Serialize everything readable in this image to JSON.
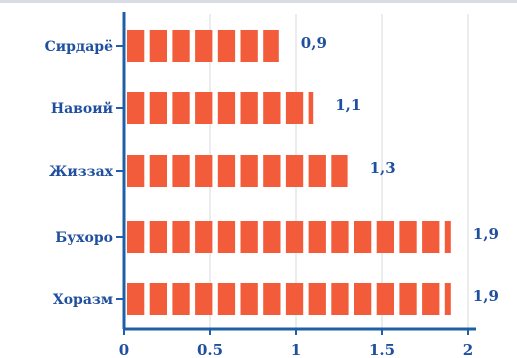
{
  "chart_data": {
    "type": "bar",
    "orientation": "horizontal",
    "categories": [
      "Сирдарё",
      "Навоий",
      "Жиззах",
      "Бухоро",
      "Хоразм"
    ],
    "values": [
      0.9,
      1.1,
      1.3,
      1.9,
      1.9
    ],
    "value_labels": [
      "0,9",
      "1,1",
      "1,3",
      "1,9",
      "1,9"
    ],
    "x_ticks": [
      0,
      0.5,
      1,
      1.5,
      2
    ],
    "x_tick_labels": [
      "0",
      "0.5",
      "1",
      "1.5",
      "2"
    ],
    "xlim": [
      0,
      2
    ],
    "grid": true,
    "legend": "none",
    "title": "",
    "xlabel": "",
    "ylabel": "",
    "colors": {
      "bar": "#f25c3b",
      "axis": "#1f5fa8",
      "category_label": "#1f4f9e",
      "value_label": "#1f4f9e",
      "grid": "#d5d9de"
    }
  }
}
